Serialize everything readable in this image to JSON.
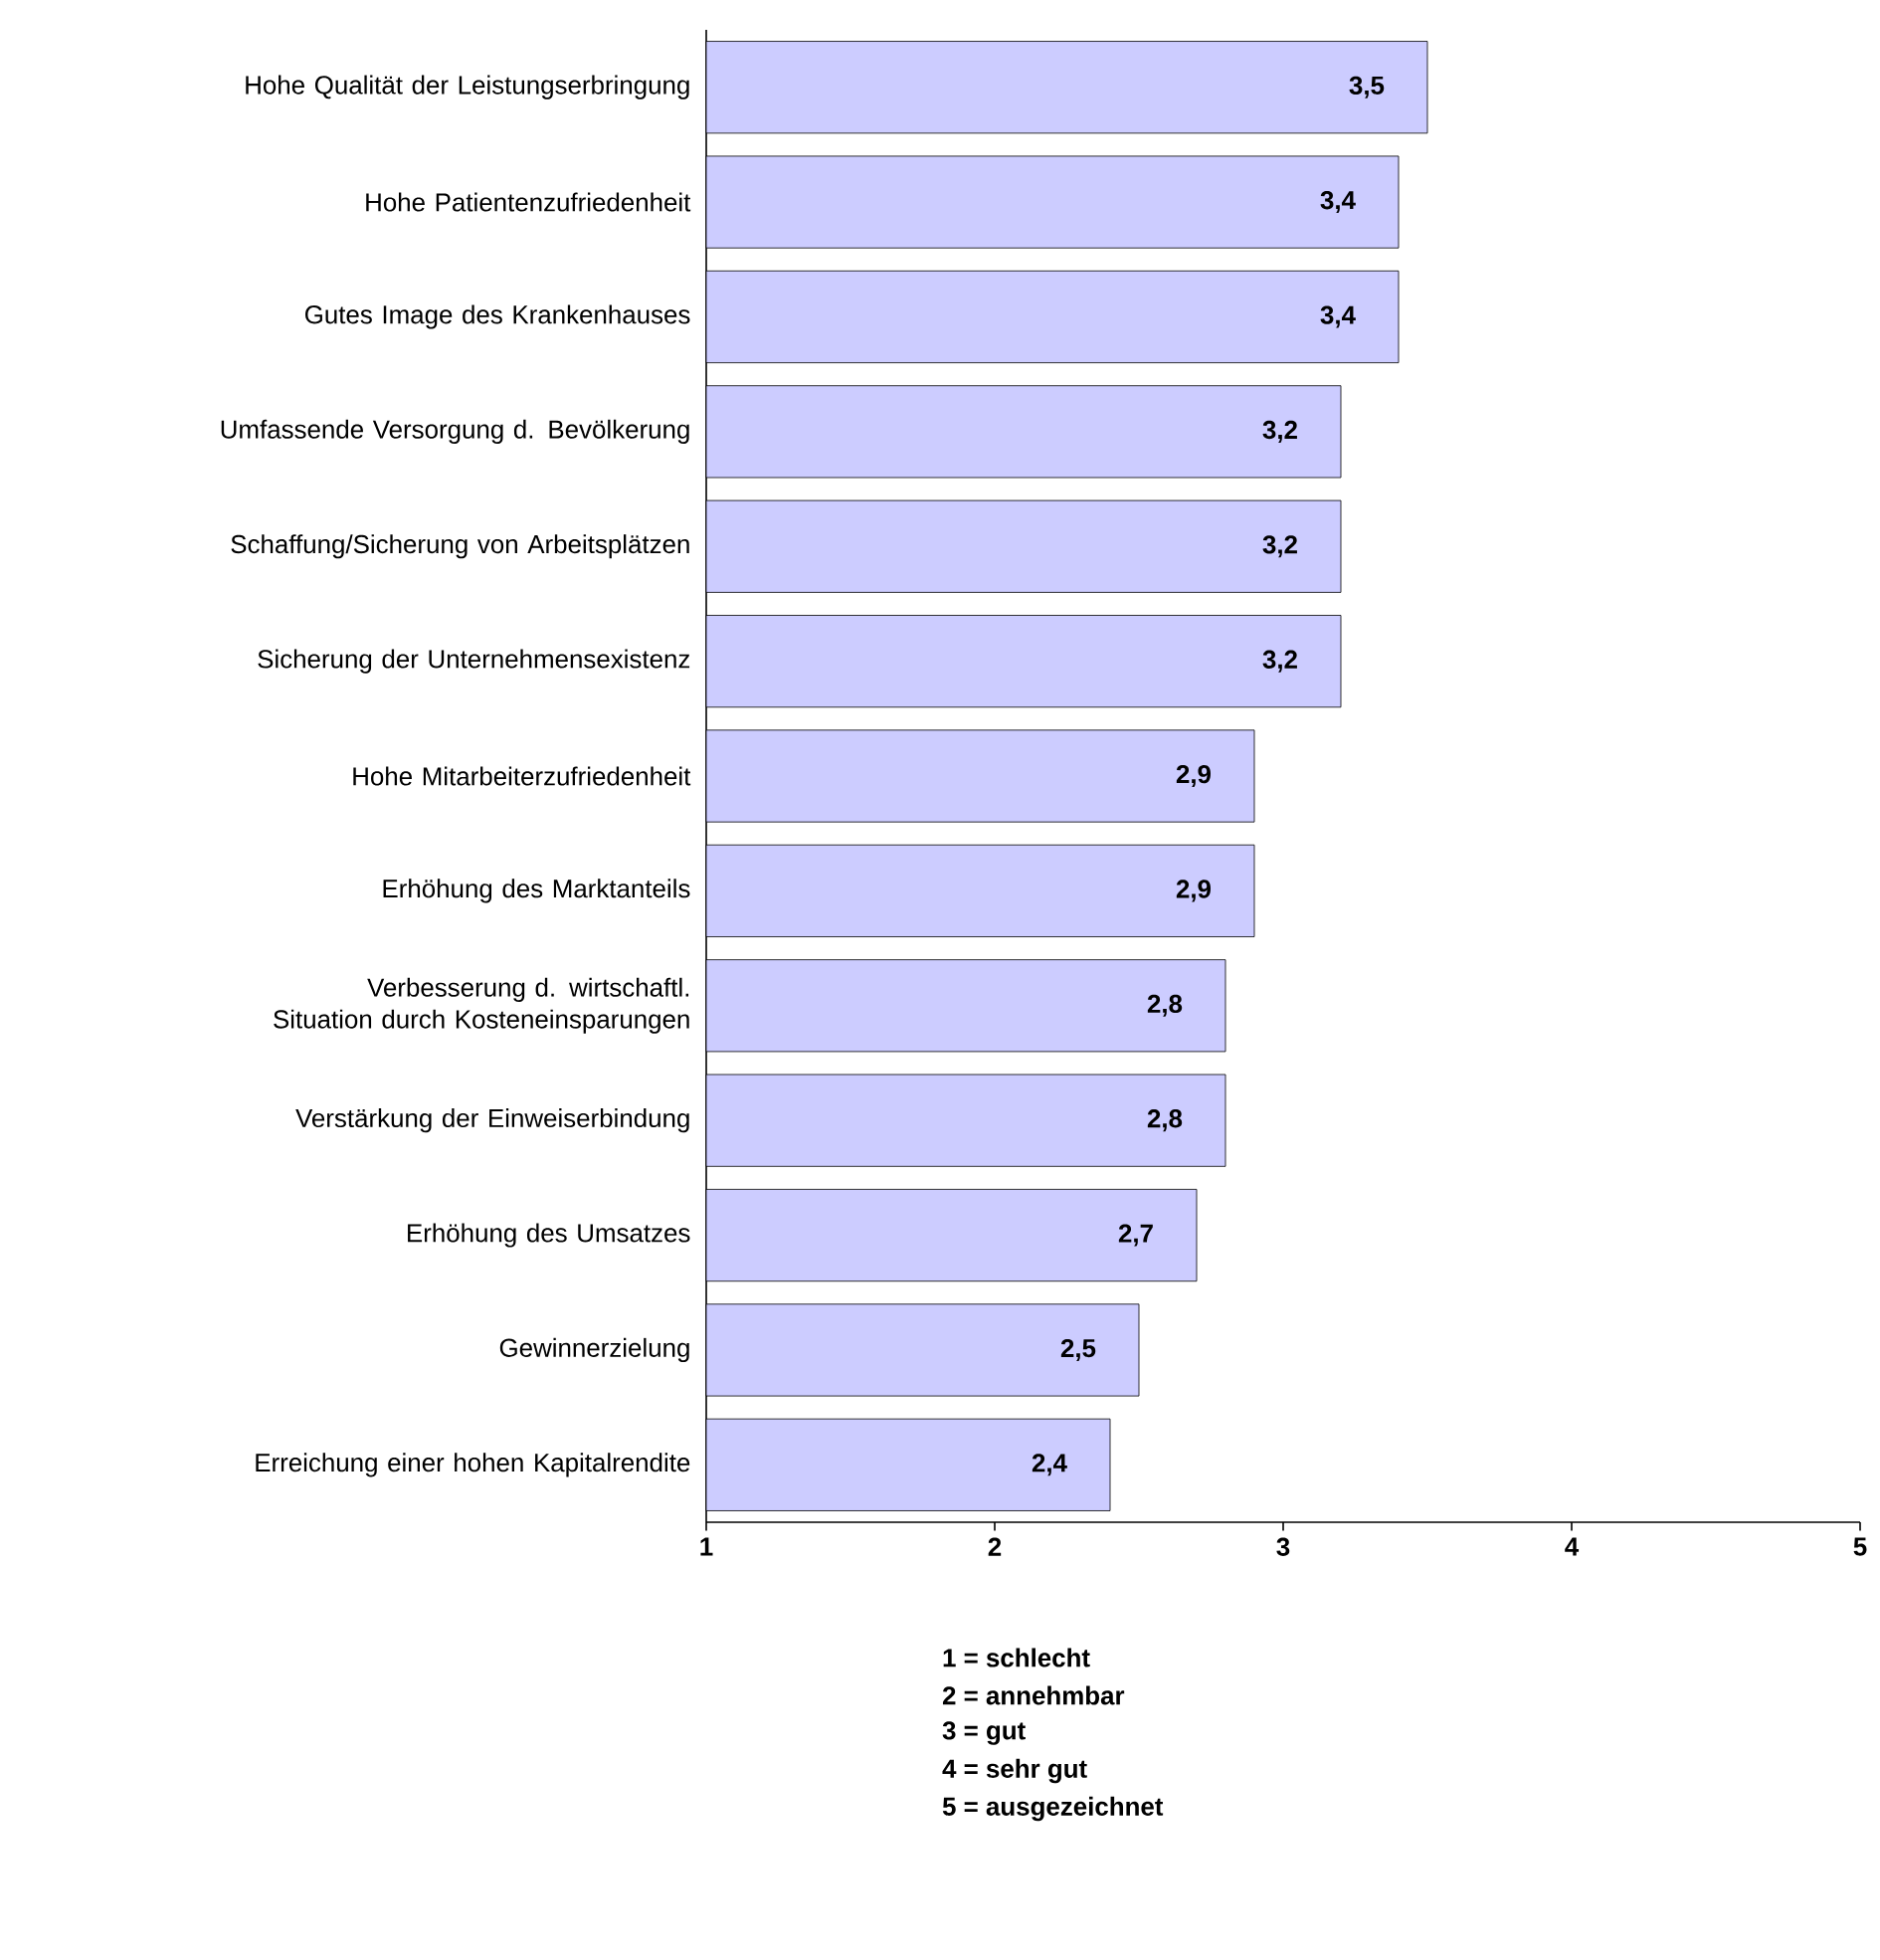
{
  "chart_data": {
    "type": "bar",
    "orientation": "horizontal",
    "categories": [
      "Hohe Qualität der Leistungserbringung",
      "Hohe Patientenzufriedenheit",
      "Gutes Image des Krankenhauses",
      "Umfassende Versorgung d. Bevölkerung",
      "Schaffung/Sicherung von Arbeitsplätzen",
      "Sicherung der Unternehmensexistenz",
      "Hohe Mitarbeiterzufriedenheit",
      "Erhöhung des Marktanteils",
      "Verbesserung d. wirtschaftl. Situation durch Kosteneinsparungen",
      "Verstärkung der Einweiserbindung",
      "Erhöhung des Umsatzes",
      "Gewinnerzielung",
      "Erreichung einer hohen Kapitalrendite"
    ],
    "values": [
      3.5,
      3.4,
      3.4,
      3.2,
      3.2,
      3.2,
      2.9,
      2.9,
      2.8,
      2.8,
      2.7,
      2.5,
      2.4
    ],
    "value_labels": [
      "3,5",
      "3,4",
      "3,4",
      "3,2",
      "3,2",
      "3,2",
      "2,9",
      "2,9",
      "2,8",
      "2,8",
      "2,7",
      "2,5",
      "2,4"
    ],
    "color": "#ccccff",
    "xlim": [
      1,
      5
    ],
    "xticks": [
      1,
      2,
      3,
      4,
      5
    ],
    "grid": false,
    "annotations": [
      "1 = schlecht",
      "2 = annehmbar",
      "3 = gut",
      "4 = sehr gut",
      "5 = ausgezeichnet"
    ]
  }
}
